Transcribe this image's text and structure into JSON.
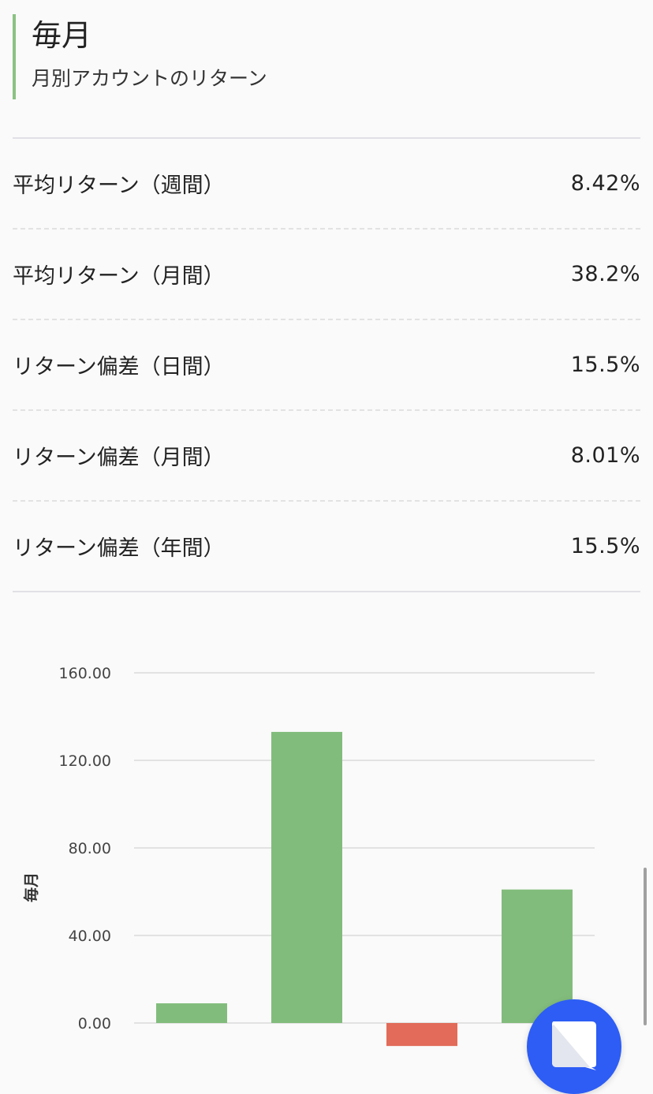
{
  "header": {
    "title": "毎月",
    "subtitle": "月別アカウントのリターン"
  },
  "stats": [
    {
      "label": "平均リターン（週間）",
      "value": "8.42%"
    },
    {
      "label": "平均リターン（月間）",
      "value": "38.2%"
    },
    {
      "label": "リターン偏差（日間）",
      "value": "15.5%"
    },
    {
      "label": "リターン偏差（月間）",
      "value": "8.01%"
    },
    {
      "label": "リターン偏差（年間）",
      "value": "15.5%"
    }
  ],
  "fab": {
    "icon": "chat-bubble-icon"
  },
  "colors": {
    "accent": "#8ac283",
    "positive": "#82bc7c",
    "negative": "#e26b59",
    "fab": "#2d5df5"
  },
  "chart_data": {
    "type": "bar",
    "ylabel": "毎月",
    "ylim": [
      -8,
      160
    ],
    "yticks": [
      {
        "value": 0,
        "label": "0.00"
      },
      {
        "value": 40,
        "label": "40.00"
      },
      {
        "value": 80,
        "label": "80.00"
      },
      {
        "value": 120,
        "label": "120.00"
      },
      {
        "value": 160,
        "label": "160.00"
      }
    ],
    "values": [
      9,
      133,
      -10.5,
      61
    ],
    "grid": true,
    "legend": "none"
  }
}
